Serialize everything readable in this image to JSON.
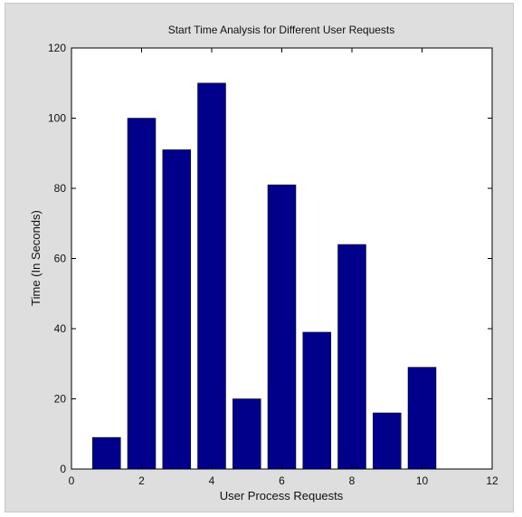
{
  "chart_data": {
    "type": "bar",
    "title": "Start Time Analysis for Different User Requests",
    "xlabel": "User Process Requests",
    "ylabel": "Time (In Seconds)",
    "x": [
      1,
      2,
      3,
      4,
      5,
      6,
      7,
      8,
      9,
      10
    ],
    "values": [
      9,
      100,
      91,
      110,
      20,
      81,
      39,
      64,
      16,
      29
    ],
    "xlim": [
      0,
      12
    ],
    "ylim": [
      0,
      120
    ],
    "xticks": [
      0,
      2,
      4,
      6,
      8,
      10,
      12
    ],
    "yticks": [
      0,
      20,
      40,
      60,
      80,
      100,
      120
    ],
    "xtick_labels": [
      "0",
      "2",
      "4",
      "6",
      "8",
      "10",
      "12"
    ],
    "ytick_labels": [
      "0",
      "20",
      "40",
      "60",
      "80",
      "100",
      "120"
    ],
    "bar_color": "#00008b",
    "grid": false,
    "legend": null
  }
}
